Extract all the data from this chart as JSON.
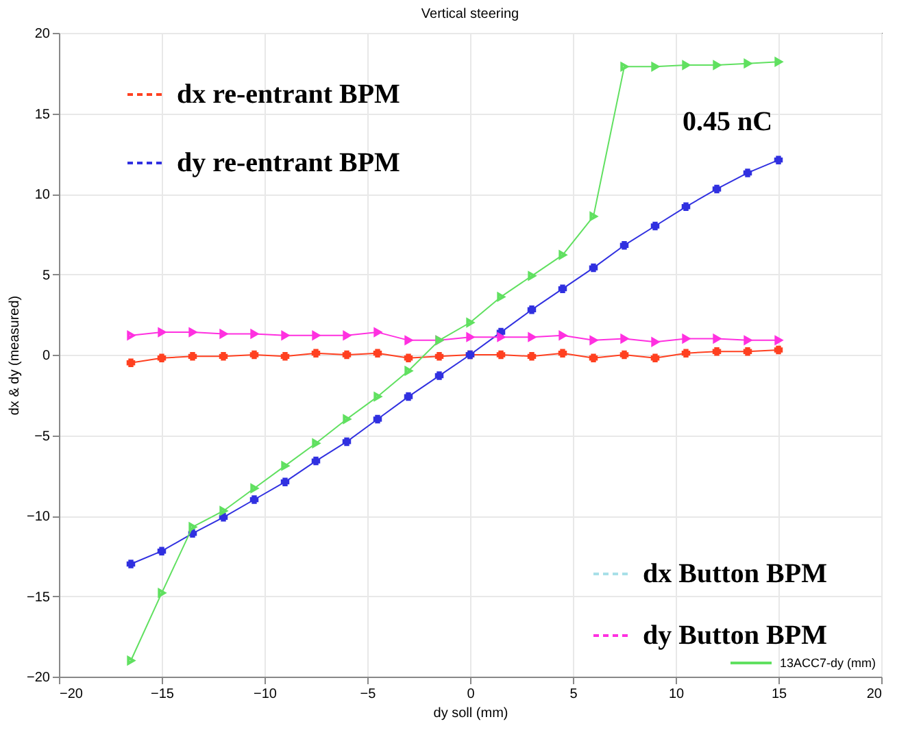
{
  "chart_data": {
    "type": "line",
    "title": "Vertical steering",
    "xlabel": "dy soll (mm)",
    "ylabel": "dx & dy (measured)",
    "x": [
      -16.5,
      -15,
      -13.5,
      -12,
      -10.5,
      -9,
      -7.5,
      -6,
      -4.5,
      -3,
      -1.5,
      0,
      1.5,
      3,
      4.5,
      6,
      7.5,
      9,
      10.5,
      12,
      13.5,
      15
    ],
    "series": [
      {
        "name": "dx re-entrant BPM",
        "color": "#ff4020",
        "marker": "cross",
        "values": [
          -0.5,
          -0.2,
          -0.1,
          -0.1,
          0,
          -0.1,
          0.1,
          0,
          0.1,
          -0.2,
          -0.1,
          0,
          0,
          -0.1,
          0.1,
          -0.2,
          0,
          -0.2,
          0.1,
          0.2,
          0.2,
          0.3
        ]
      },
      {
        "name": "dy re-entrant BPM",
        "color": "#3030e0",
        "marker": "cross",
        "values": [
          -13,
          -12.2,
          -11.1,
          -10.1,
          -9,
          -7.9,
          -6.6,
          -5.4,
          -4,
          -2.6,
          -1.3,
          0,
          1.4,
          2.8,
          4.1,
          5.4,
          6.8,
          8,
          9.2,
          10.3,
          11.3,
          12.1
        ]
      },
      {
        "name": "dx Button BPM",
        "color": "#a8e0e8",
        "marker": "triangle",
        "values": [
          null,
          null,
          null,
          null,
          null,
          null,
          null,
          null,
          null,
          null,
          null,
          null,
          null,
          null,
          null,
          null,
          null,
          null,
          null,
          null,
          null,
          null
        ]
      },
      {
        "name": "dy Button BPM",
        "color": "#ff30e0",
        "marker": "triangle",
        "values": [
          1.2,
          1.4,
          1.4,
          1.3,
          1.3,
          1.2,
          1.2,
          1.2,
          1.4,
          0.9,
          0.9,
          1.1,
          1.1,
          1.1,
          1.2,
          0.9,
          1.0,
          0.8,
          1.0,
          1.0,
          0.9,
          0.9
        ]
      },
      {
        "name": "13ACC7-dy (mm)",
        "color": "#60e060",
        "marker": "triangle",
        "values": [
          -19.0,
          -14.8,
          -10.7,
          -9.7,
          -8.3,
          -6.9,
          -5.5,
          -4.0,
          -2.6,
          -1.0,
          0.9,
          2.0,
          3.6,
          4.9,
          6.2,
          8.6,
          17.9,
          17.9,
          18.0,
          18.0,
          18.1,
          18.2
        ]
      }
    ],
    "annotations": [
      "0.45 nC"
    ],
    "xlim": [
      -20,
      20
    ],
    "xticks": [
      -20,
      -15,
      -10,
      -5,
      0,
      5,
      10,
      15,
      20
    ],
    "ylim": [
      -20,
      20
    ],
    "yticks": [
      -20,
      -15,
      -10,
      -5,
      0,
      5,
      10,
      15,
      20
    ],
    "grid": true,
    "legend": "bottom right",
    "line_style": "solid"
  }
}
